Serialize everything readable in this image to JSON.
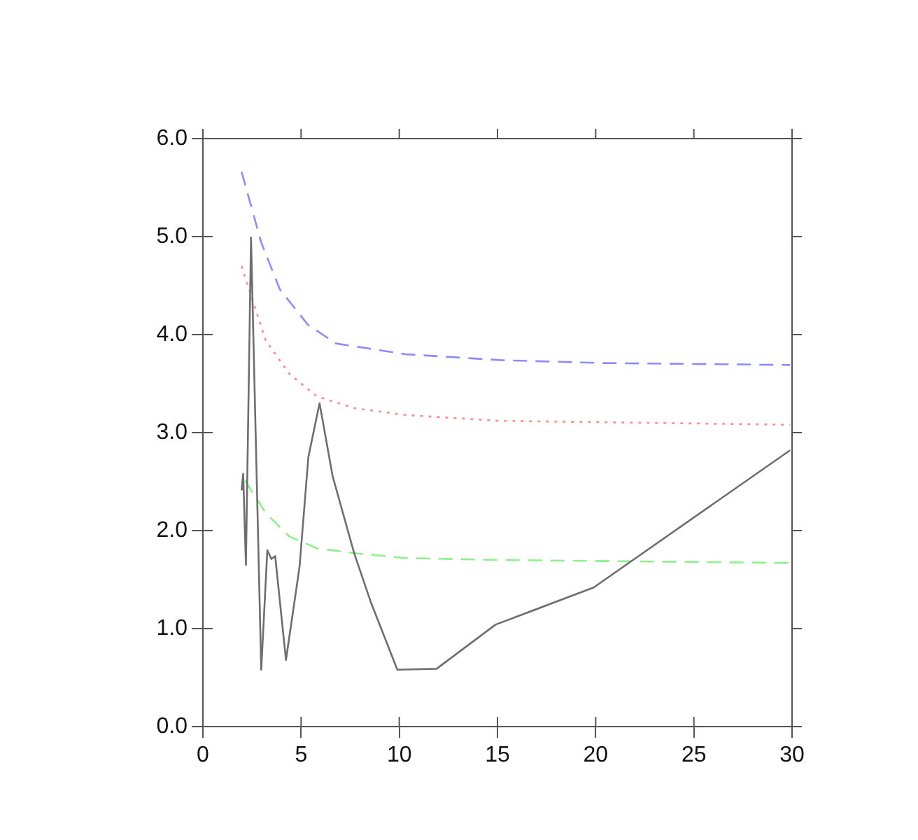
{
  "chart_data": {
    "type": "line",
    "xlim": [
      0,
      30
    ],
    "ylim": [
      0,
      6
    ],
    "xticks": [
      0,
      5,
      10,
      15,
      20,
      25,
      30
    ],
    "yticks": [
      {
        "value": 0,
        "label": "0.0"
      },
      {
        "value": 1,
        "label": "1.0"
      },
      {
        "value": 2,
        "label": "2.0"
      },
      {
        "value": 3,
        "label": "3.0"
      },
      {
        "value": 4,
        "label": "4.0"
      },
      {
        "value": 5,
        "label": "5.0"
      },
      {
        "value": 6,
        "label": "6.0"
      }
    ],
    "grid": false,
    "legend": false,
    "marker": "none",
    "series": [
      {
        "color": "#6e6e6e",
        "line_style": "solid",
        "x": [
          1.97,
          2.05,
          2.19,
          2.45,
          2.97,
          3.28,
          3.49,
          3.68,
          4.23,
          4.92,
          5.37,
          5.94,
          6.6,
          7.7,
          8.55,
          9.9,
          11.9,
          14.9,
          19.9,
          29.9
        ],
        "values": [
          2.41,
          2.58,
          1.65,
          4.99,
          0.58,
          1.8,
          1.71,
          1.74,
          0.68,
          1.63,
          2.75,
          3.3,
          2.56,
          1.77,
          1.27,
          0.58,
          0.59,
          1.04,
          1.42,
          2.82
        ]
      },
      {
        "color": "#8c8cff",
        "line_style": "dashed",
        "x": [
          1.97,
          2.97,
          3.92,
          5.35,
          6.77,
          10.3,
          15.1,
          20.3,
          29.9
        ],
        "values": [
          5.66,
          4.94,
          4.46,
          4.1,
          3.91,
          3.8,
          3.74,
          3.71,
          3.69
        ]
      },
      {
        "color": "#ff8c8c",
        "line_style": "dotted",
        "x": [
          1.97,
          2.5,
          3.2,
          4.4,
          5.8,
          7.7,
          10.3,
          15.1,
          29.9
        ],
        "values": [
          4.7,
          4.37,
          3.94,
          3.6,
          3.37,
          3.25,
          3.18,
          3.12,
          3.08
        ]
      },
      {
        "color": "#8cf08c",
        "line_style": "dashed",
        "x": [
          2.14,
          3.2,
          4.4,
          5.8,
          7.7,
          10.3,
          15.1,
          29.9
        ],
        "values": [
          2.51,
          2.18,
          1.94,
          1.82,
          1.77,
          1.72,
          1.7,
          1.67
        ]
      }
    ]
  }
}
